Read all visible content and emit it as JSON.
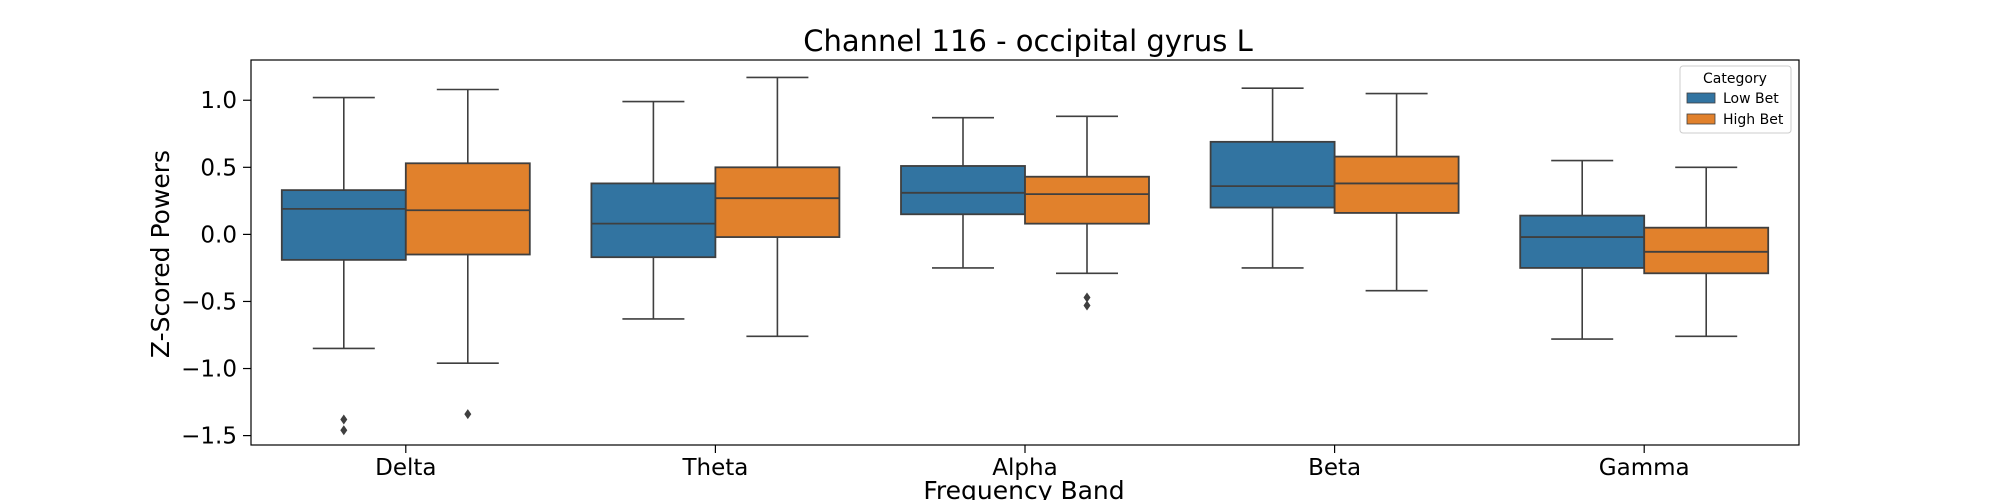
{
  "chart_data": {
    "type": "boxplot",
    "title": "Channel 116 - occipital gyrus L",
    "xlabel": "Frequency Band",
    "ylabel": "Z-Scored Powers",
    "categories": [
      "Delta",
      "Theta",
      "Alpha",
      "Beta",
      "Gamma"
    ],
    "ylim": [
      -1.57,
      1.3
    ],
    "yticks": [
      1.0,
      0.5,
      0.0,
      -0.5,
      -1.0,
      -1.5
    ],
    "ytick_labels": [
      "1.0",
      "0.5",
      "0.0",
      "−0.5",
      "−1.0",
      "−1.5"
    ],
    "legend": {
      "title": "Category",
      "position": "top-right"
    },
    "series": [
      {
        "name": "Low Bet",
        "color": "#3274a1",
        "boxes": [
          {
            "whislo": -0.85,
            "q1": -0.19,
            "med": 0.19,
            "q3": 0.33,
            "whishi": 1.02,
            "fliers": [
              -1.38,
              -1.46
            ]
          },
          {
            "whislo": -0.63,
            "q1": -0.17,
            "med": 0.08,
            "q3": 0.38,
            "whishi": 0.99,
            "fliers": []
          },
          {
            "whislo": -0.25,
            "q1": 0.15,
            "med": 0.31,
            "q3": 0.51,
            "whishi": 0.87,
            "fliers": []
          },
          {
            "whislo": -0.25,
            "q1": 0.2,
            "med": 0.36,
            "q3": 0.69,
            "whishi": 1.09,
            "fliers": []
          },
          {
            "whislo": -0.78,
            "q1": -0.25,
            "med": -0.02,
            "q3": 0.14,
            "whishi": 0.55,
            "fliers": []
          }
        ]
      },
      {
        "name": "High Bet",
        "color": "#e1812c",
        "boxes": [
          {
            "whislo": -0.96,
            "q1": -0.15,
            "med": 0.18,
            "q3": 0.53,
            "whishi": 1.08,
            "fliers": [
              -1.34
            ]
          },
          {
            "whislo": -0.76,
            "q1": -0.02,
            "med": 0.27,
            "q3": 0.5,
            "whishi": 1.17,
            "fliers": []
          },
          {
            "whislo": -0.29,
            "q1": 0.08,
            "med": 0.3,
            "q3": 0.43,
            "whishi": 0.88,
            "fliers": [
              -0.47,
              -0.53
            ]
          },
          {
            "whislo": -0.42,
            "q1": 0.16,
            "med": 0.38,
            "q3": 0.58,
            "whishi": 1.05,
            "fliers": []
          },
          {
            "whislo": -0.76,
            "q1": -0.29,
            "med": -0.13,
            "q3": 0.05,
            "whishi": 0.5,
            "fliers": []
          }
        ]
      }
    ]
  }
}
